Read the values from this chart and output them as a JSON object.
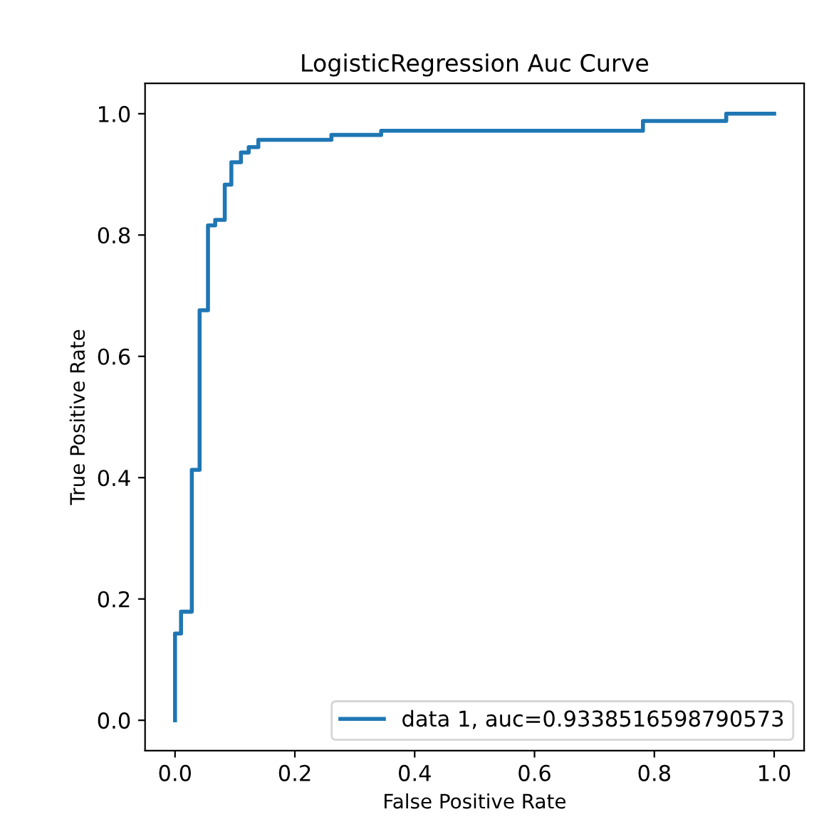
{
  "chart_data": {
    "type": "line",
    "title": "LogisticRegression Auc Curve",
    "xlabel": "False Positive Rate",
    "ylabel": "True Positive Rate",
    "xlim": [
      -0.05,
      1.05
    ],
    "ylim": [
      -0.05,
      1.05
    ],
    "xticks": [
      {
        "value": 0,
        "label": "0.0"
      },
      {
        "value": 0.2,
        "label": "0.2"
      },
      {
        "value": 0.4,
        "label": "0.4"
      },
      {
        "value": 0.6,
        "label": "0.6"
      },
      {
        "value": 0.8,
        "label": "0.8"
      },
      {
        "value": 1,
        "label": "1.0"
      }
    ],
    "yticks": [
      {
        "value": 0,
        "label": "0.0"
      },
      {
        "value": 0.2,
        "label": "0.2"
      },
      {
        "value": 0.4,
        "label": "0.4"
      },
      {
        "value": 0.6,
        "label": "0.6"
      },
      {
        "value": 0.8,
        "label": "0.8"
      },
      {
        "value": 1,
        "label": "1.0"
      }
    ],
    "grid": false,
    "legend": "bottom right",
    "series": [
      {
        "name": "data 1, auc=0.9338516598790573",
        "color": "#1f77b4",
        "x": [
          0,
          0,
          0.01,
          0.01,
          0.028,
          0.028,
          0.041,
          0.041,
          0.055,
          0.055,
          0.067,
          0.067,
          0.083,
          0.083,
          0.094,
          0.094,
          0.11,
          0.11,
          0.123,
          0.123,
          0.139,
          0.139,
          0.261,
          0.261,
          0.344,
          0.344,
          0.781,
          0.781,
          0.92,
          0.92,
          1.0
        ],
        "values": [
          0,
          0.143,
          0.143,
          0.179,
          0.179,
          0.413,
          0.413,
          0.676,
          0.676,
          0.816,
          0.816,
          0.825,
          0.825,
          0.883,
          0.883,
          0.92,
          0.92,
          0.936,
          0.936,
          0.945,
          0.945,
          0.957,
          0.957,
          0.965,
          0.965,
          0.972,
          0.972,
          0.988,
          0.988,
          1.0,
          1.0
        ]
      }
    ]
  }
}
